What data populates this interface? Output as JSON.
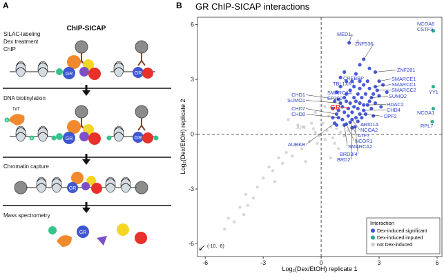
{
  "panel_a": {
    "letter": "A",
    "title": "ChIP-SICAP",
    "steps": [
      "SILAC-labeling",
      "Dex treatment",
      "ChIP",
      "DNA biotinylation",
      "Chromatin capture",
      "Mass spectrometry"
    ],
    "protein_label": "GR",
    "enzyme_label": "TdT",
    "biotin_label": "B"
  },
  "chart_data": {
    "type": "scatter",
    "panel_letter": "B",
    "title": "GR ChIP-SICAP interactions",
    "x_label": "Log₂(Dex/EtOH) replicate 1",
    "y_label": "Log₂(Dex/EtOH) replicate 2",
    "xlim": [
      -6.4,
      6.25
    ],
    "ylim": [
      -6.7,
      6.4
    ],
    "xticks": [
      -6,
      -3,
      0,
      3,
      6
    ],
    "yticks": [
      -6,
      -3,
      0,
      3,
      6
    ],
    "reference_lines": {
      "x": 0,
      "y": 0
    },
    "legend_title": "Interaction",
    "legend": "bottom-right",
    "series": [
      {
        "name": "Dex-induced significant",
        "color": "#3f51d8",
        "x": [
          0.9,
          1.0,
          0.8,
          0.9,
          0.7,
          1.3,
          1.2,
          1.7,
          2.0,
          1.45,
          2.2,
          2.8,
          3.0,
          2.8,
          2.9,
          2.6,
          2.4,
          2.2,
          2.0,
          1.8,
          1.6,
          1.5,
          1.3,
          1.2,
          1.75,
          1.6,
          0.6,
          0.7,
          0.8,
          0.9,
          1.0,
          1.1,
          1.1,
          1.2,
          1.3,
          1.3,
          1.4,
          1.4,
          1.5,
          1.5,
          1.6,
          1.7,
          1.7,
          1.8,
          1.8,
          1.9,
          1.9,
          2.0,
          2.0,
          2.1,
          2.1,
          2.2,
          2.2,
          2.3,
          2.3,
          2.4,
          2.5,
          2.5,
          2.6,
          2.7,
          2.8,
          3.0,
          3.1,
          3.2,
          1.0,
          0.6,
          2.0,
          2.5,
          1.2,
          0.8,
          1.9,
          2.7,
          3.4,
          1.6
        ],
        "y": [
          1.9,
          1.7,
          1.1,
          0.9,
          0.6,
          2.2,
          2.0,
          2.6,
          2.9,
          5.0,
          4.1,
          3.4,
          2.9,
          2.6,
          2.4,
          2.0,
          1.6,
          1.3,
          1.1,
          0.9,
          0.8,
          0.65,
          0.55,
          0.5,
          0.4,
          0.35,
          1.4,
          1.8,
          2.3,
          1.3,
          2.6,
          1.5,
          0.8,
          1.2,
          1.8,
          2.9,
          1.0,
          1.4,
          2.4,
          1.7,
          1.2,
          2.0,
          1.5,
          3.3,
          1.8,
          2.2,
          1.4,
          1.7,
          2.5,
          2.0,
          0.9,
          2.7,
          1.6,
          2.2,
          1.1,
          2.9,
          1.8,
          2.5,
          1.4,
          2.2,
          1.7,
          2.1,
          1.5,
          2.7,
          3.1,
          0.9,
          3.8,
          3.6,
          3.4,
          0.5,
          0.7,
          1.0,
          2.3,
          2.9
        ],
        "labels": [
          "CHD1",
          "SUMO1",
          "CHD7",
          "CHD8",
          "AURKB",
          "SMARCA4",
          "EP300",
          "TBL1XR1",
          "CREBBP",
          "MED1",
          "ZNF536",
          "ZNF281",
          "SMARCE1",
          "SMARCC1",
          "SMARCC2",
          "SUMO2",
          "HDAC2",
          "CHD4",
          "DPF2",
          "ARID1A",
          "NCOA2",
          "ATF7",
          "NCOR1",
          "SMARCA2",
          "BRD3/4",
          "BRD2",
          null,
          null,
          null,
          null,
          null,
          null,
          null,
          null,
          null,
          null,
          null,
          null,
          null,
          null,
          null,
          null,
          null,
          null,
          null,
          null,
          null,
          null,
          null,
          null,
          null,
          null,
          null,
          null,
          null,
          null,
          null,
          null,
          null,
          null,
          null,
          null,
          null,
          null,
          null,
          null,
          null,
          null,
          null,
          null,
          null,
          null,
          null,
          null
        ]
      },
      {
        "name": "Dex-induced imputed",
        "color": "#26a98b",
        "x": [
          5.8,
          5.8,
          5.8,
          5.8,
          5.75
        ],
        "y": [
          5.66,
          5.66,
          2.6,
          1.4,
          0.68
        ],
        "labels": [
          "NCOA6",
          "CSTF3",
          "YY1",
          "NCOA1",
          "RPL7"
        ]
      },
      {
        "name": "not Dex-induced",
        "color": "#d3d3d3",
        "x": [
          -0.9,
          1.6,
          0.3,
          0.5,
          0.2,
          -0.3,
          -0.5,
          0.6,
          1.0,
          1.2,
          0.8,
          -0.2,
          0.4,
          -0.6,
          -1.0,
          -1.3,
          -1.5,
          -1.8,
          -2.0,
          -2.2,
          -2.5,
          -2.7,
          -3.0,
          -3.3,
          -3.5,
          -3.8,
          -4.2,
          -4.0,
          -4.5,
          -5.0,
          -4.8,
          -3.9,
          0.1,
          -0.1,
          1.4,
          0.7,
          -0.4,
          0.2,
          0.0,
          -0.3,
          2.2,
          0.9,
          -1.2,
          0.5,
          -0.8,
          1.9,
          -1.7,
          -2.4
        ],
        "y": [
          0.4,
          5.4,
          0.2,
          0.4,
          -0.3,
          0.1,
          0.6,
          -0.2,
          0.1,
          -0.1,
          0.3,
          -0.5,
          1.0,
          -0.4,
          -0.8,
          -0.6,
          -1.2,
          -1.0,
          -1.6,
          -1.3,
          -2.0,
          -1.8,
          -2.4,
          -2.9,
          -3.5,
          -3.9,
          -4.0,
          -4.4,
          -4.8,
          -5.2,
          -4.6,
          -3.3,
          0.6,
          -0.1,
          0.2,
          -0.5,
          0.3,
          1.5,
          2.0,
          1.2,
          0.5,
          -0.8,
          0.5,
          -1.3,
          -1.5,
          5.1,
          0.8,
          -2.6
        ],
        "labels": [
          "JUN",
          null,
          null,
          null,
          null,
          null,
          null,
          null,
          null,
          null,
          null,
          null,
          null,
          null,
          null,
          null,
          null,
          null,
          null,
          null,
          null,
          null,
          null,
          null,
          null,
          null,
          null,
          null,
          null,
          null,
          null,
          null,
          null,
          null,
          null,
          null,
          null,
          null,
          null,
          null,
          null,
          null,
          null,
          null,
          null,
          null,
          null,
          null
        ]
      }
    ],
    "highlight": {
      "text": "GR",
      "color": "#e8312a",
      "x": 1.5,
      "y": 1.45
    },
    "offscale_note": "(-10, -8)"
  }
}
